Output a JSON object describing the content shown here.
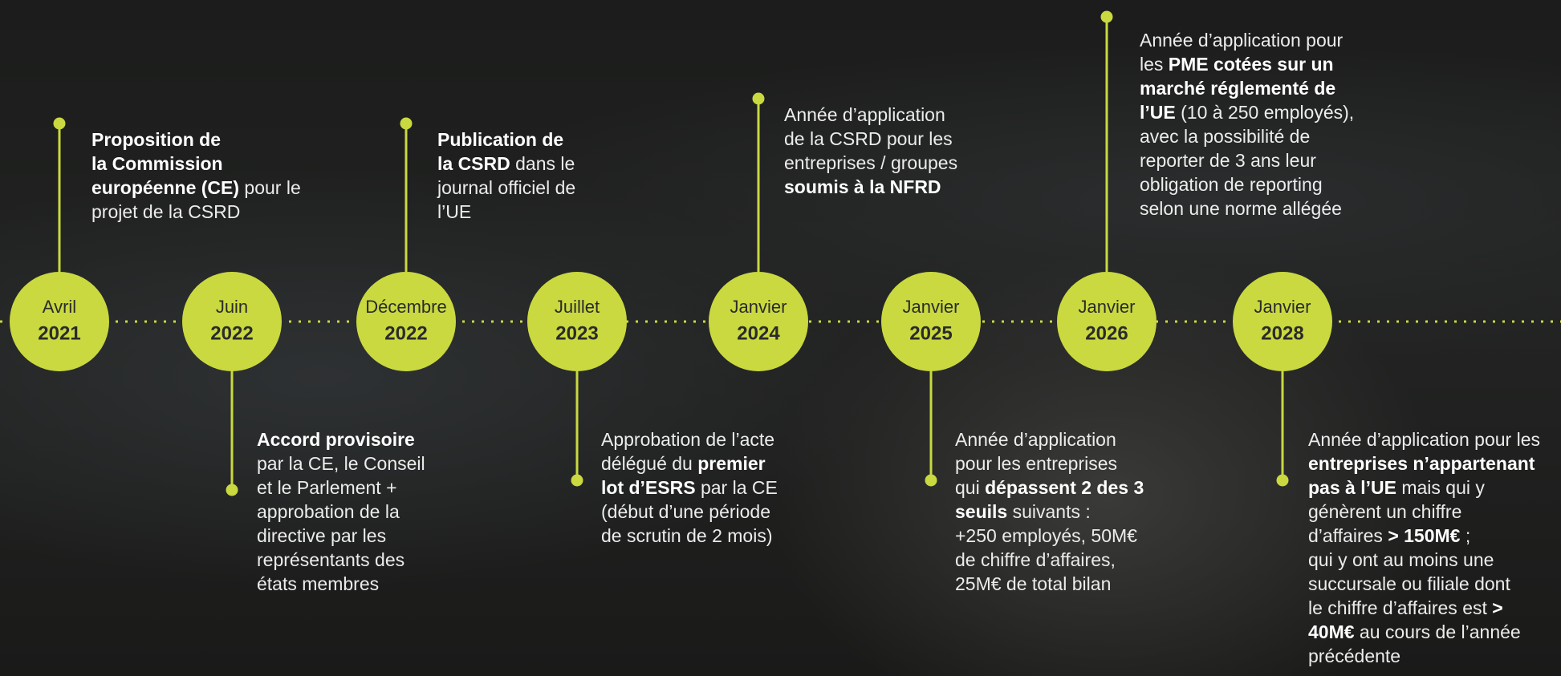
{
  "timeline": {
    "events": [
      {
        "month": "Avril",
        "year": "2021",
        "position": "top",
        "lines": [
          [
            {
              "b": "Proposition de"
            }
          ],
          [
            {
              "b": "la Commission"
            }
          ],
          [
            {
              "b": "européenne (CE)"
            },
            " pour le"
          ],
          [
            "projet de la CSRD"
          ]
        ]
      },
      {
        "month": "Juin",
        "year": "2022",
        "position": "bottom",
        "lines": [
          [
            {
              "b": "Accord provisoire"
            }
          ],
          [
            "par la CE, le Conseil"
          ],
          [
            "et le Parlement +"
          ],
          [
            "approbation de la"
          ],
          [
            "directive par les"
          ],
          [
            "représentants des"
          ],
          [
            "états membres"
          ]
        ]
      },
      {
        "month": "Décembre",
        "year": "2022",
        "position": "top",
        "lines": [
          [
            {
              "b": "Publication de"
            }
          ],
          [
            {
              "b": "la CSRD"
            },
            " dans le"
          ],
          [
            "journal officiel de"
          ],
          [
            "l’UE"
          ]
        ]
      },
      {
        "month": "Juillet",
        "year": "2023",
        "position": "bottom",
        "lines": [
          [
            "Approbation de l’acte"
          ],
          [
            "délégué du ",
            {
              "b": "premier"
            }
          ],
          [
            {
              "b": "lot d’ESRS"
            },
            " par la CE"
          ],
          [
            "(début d’une période"
          ],
          [
            "de scrutin de 2 mois)"
          ]
        ]
      },
      {
        "month": "Janvier",
        "year": "2024",
        "position": "top",
        "lines": [
          [
            "Année d’application"
          ],
          [
            "de la CSRD pour les"
          ],
          [
            "entreprises / groupes"
          ],
          [
            {
              "b": "soumis à la NFRD"
            }
          ]
        ]
      },
      {
        "month": "Janvier",
        "year": "2025",
        "position": "bottom",
        "lines": [
          [
            "Année d’application"
          ],
          [
            "pour les entreprises"
          ],
          [
            "qui ",
            {
              "b": "dépassent 2 des 3"
            }
          ],
          [
            {
              "b": "seuils"
            },
            " suivants :"
          ],
          [
            "+250 employés, 50M€"
          ],
          [
            "de chiffre d’affaires,"
          ],
          [
            "25M€ de total bilan"
          ]
        ]
      },
      {
        "month": "Janvier",
        "year": "2026",
        "position": "top",
        "lines": [
          [
            "Année d’application pour"
          ],
          [
            "les ",
            {
              "b": "PME cotées sur un"
            }
          ],
          [
            {
              "b": "marché réglementé de"
            }
          ],
          [
            {
              "b": "l’UE"
            },
            " (10 à 250 employés),"
          ],
          [
            "avec la possibilité de"
          ],
          [
            "reporter de 3 ans leur"
          ],
          [
            "obligation de reporting"
          ],
          [
            "selon une norme allégée"
          ]
        ]
      },
      {
        "month": "Janvier",
        "year": "2028",
        "position": "bottom",
        "lines": [
          [
            "Année d’application pour les"
          ],
          [
            {
              "b": "entreprises n’appartenant"
            }
          ],
          [
            {
              "b": "pas à l’UE"
            },
            " mais qui y"
          ],
          [
            "génèrent un chiffre"
          ],
          [
            "d’affaires ",
            {
              "b": "> 150M€"
            },
            " ;"
          ],
          [
            "qui y ont au moins une"
          ],
          [
            "succursale ou filiale dont"
          ],
          [
            "le chiffre d’affaires est ",
            {
              "b": ">"
            }
          ],
          [
            {
              "b": "40M€"
            },
            " au cours de l’année"
          ],
          [
            "précédente"
          ]
        ]
      }
    ]
  }
}
